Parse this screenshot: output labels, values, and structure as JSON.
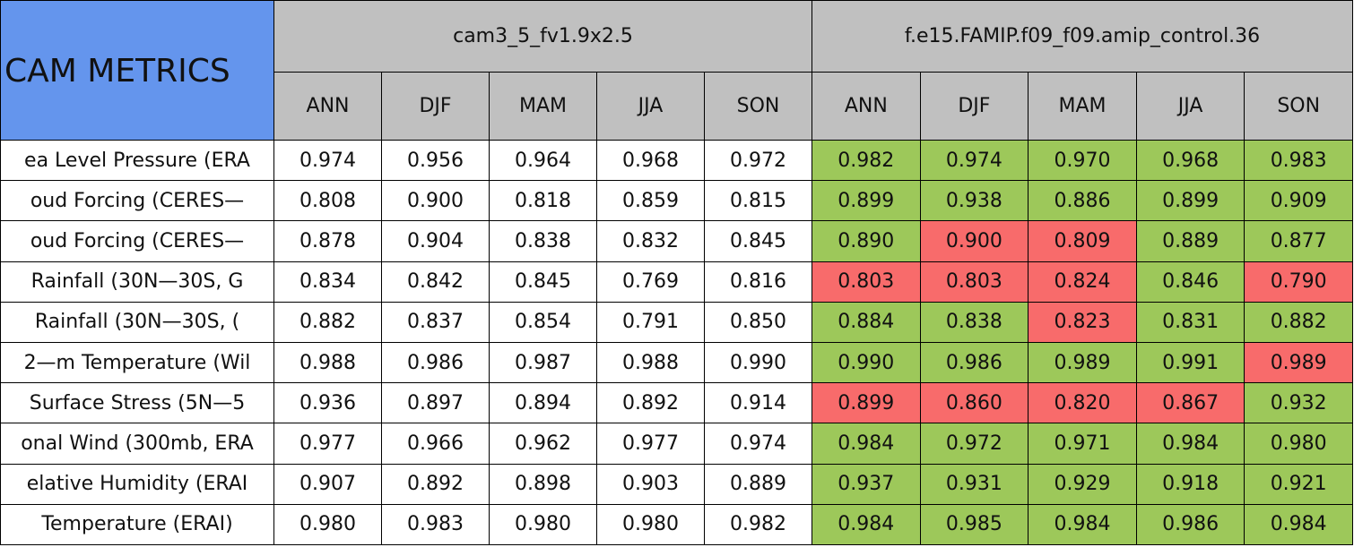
{
  "header": {
    "title": "CAM METRICS",
    "groups": [
      "cam3_5_fv1.9x2.5",
      "f.e15.FAMIP.f09_f09.amip_control.36"
    ],
    "columns": [
      [
        "ANN",
        "DJF",
        "MAM",
        "JJA",
        "SON"
      ],
      [
        "ANN",
        "DJF",
        "MAM",
        "JJA",
        "SON"
      ]
    ]
  },
  "table": {
    "rows": [
      {
        "label": "ea Level Pressure (ERA",
        "cells": [
          "0.974",
          "0.956",
          "0.964",
          "0.968",
          "0.972",
          "0.982",
          "0.974",
          "0.970",
          "0.968",
          "0.983"
        ],
        "fills": [
          "#ffffff",
          "#ffffff",
          "#ffffff",
          "#ffffff",
          "#ffffff",
          "#9dc85a",
          "#9dc85a",
          "#9dc85a",
          "#9dc85a",
          "#9dc85a"
        ]
      },
      {
        "label": "oud Forcing (CERES—",
        "cells": [
          "0.808",
          "0.900",
          "0.818",
          "0.859",
          "0.815",
          "0.899",
          "0.938",
          "0.886",
          "0.899",
          "0.909"
        ],
        "fills": [
          "#ffffff",
          "#ffffff",
          "#ffffff",
          "#ffffff",
          "#ffffff",
          "#9dc85a",
          "#9dc85a",
          "#9dc85a",
          "#9dc85a",
          "#9dc85a"
        ]
      },
      {
        "label": "oud Forcing (CERES—",
        "cells": [
          "0.878",
          "0.904",
          "0.838",
          "0.832",
          "0.845",
          "0.890",
          "0.900",
          "0.809",
          "0.889",
          "0.877"
        ],
        "fills": [
          "#ffffff",
          "#ffffff",
          "#ffffff",
          "#ffffff",
          "#ffffff",
          "#9dc85a",
          "#f86b6b",
          "#f86b6b",
          "#9dc85a",
          "#9dc85a"
        ]
      },
      {
        "label": "Rainfall (30N—30S, G",
        "cells": [
          "0.834",
          "0.842",
          "0.845",
          "0.769",
          "0.816",
          "0.803",
          "0.803",
          "0.824",
          "0.846",
          "0.790"
        ],
        "fills": [
          "#ffffff",
          "#ffffff",
          "#ffffff",
          "#ffffff",
          "#ffffff",
          "#f86b6b",
          "#f86b6b",
          "#f86b6b",
          "#9dc85a",
          "#f86b6b"
        ]
      },
      {
        "label": "Rainfall (30N—30S, (",
        "cells": [
          "0.882",
          "0.837",
          "0.854",
          "0.791",
          "0.850",
          "0.884",
          "0.838",
          "0.823",
          "0.831",
          "0.882"
        ],
        "fills": [
          "#ffffff",
          "#ffffff",
          "#ffffff",
          "#ffffff",
          "#ffffff",
          "#9dc85a",
          "#9dc85a",
          "#f86b6b",
          "#9dc85a",
          "#9dc85a"
        ]
      },
      {
        "label": "2—m Temperature (Wil",
        "cells": [
          "0.988",
          "0.986",
          "0.987",
          "0.988",
          "0.990",
          "0.990",
          "0.986",
          "0.989",
          "0.991",
          "0.989"
        ],
        "fills": [
          "#ffffff",
          "#ffffff",
          "#ffffff",
          "#ffffff",
          "#ffffff",
          "#9dc85a",
          "#9dc85a",
          "#9dc85a",
          "#9dc85a",
          "#f86b6b"
        ]
      },
      {
        "label": "Surface Stress (5N—5",
        "cells": [
          "0.936",
          "0.897",
          "0.894",
          "0.892",
          "0.914",
          "0.899",
          "0.860",
          "0.820",
          "0.867",
          "0.932"
        ],
        "fills": [
          "#ffffff",
          "#ffffff",
          "#ffffff",
          "#ffffff",
          "#ffffff",
          "#f86b6b",
          "#f86b6b",
          "#f86b6b",
          "#f86b6b",
          "#9dc85a"
        ]
      },
      {
        "label": "onal Wind (300mb, ERA",
        "cells": [
          "0.977",
          "0.966",
          "0.962",
          "0.977",
          "0.974",
          "0.984",
          "0.972",
          "0.971",
          "0.984",
          "0.980"
        ],
        "fills": [
          "#ffffff",
          "#ffffff",
          "#ffffff",
          "#ffffff",
          "#ffffff",
          "#9dc85a",
          "#9dc85a",
          "#9dc85a",
          "#9dc85a",
          "#9dc85a"
        ]
      },
      {
        "label": "elative Humidity (ERAI",
        "cells": [
          "0.907",
          "0.892",
          "0.898",
          "0.903",
          "0.889",
          "0.937",
          "0.931",
          "0.929",
          "0.918",
          "0.921"
        ],
        "fills": [
          "#ffffff",
          "#ffffff",
          "#ffffff",
          "#ffffff",
          "#ffffff",
          "#9dc85a",
          "#9dc85a",
          "#9dc85a",
          "#9dc85a",
          "#9dc85a"
        ]
      },
      {
        "label": "Temperature (ERAI)",
        "cells": [
          "0.980",
          "0.983",
          "0.980",
          "0.980",
          "0.982",
          "0.984",
          "0.985",
          "0.984",
          "0.986",
          "0.984"
        ],
        "fills": [
          "#ffffff",
          "#ffffff",
          "#ffffff",
          "#ffffff",
          "#ffffff",
          "#9dc85a",
          "#9dc85a",
          "#9dc85a",
          "#9dc85a",
          "#9dc85a"
        ]
      }
    ]
  }
}
